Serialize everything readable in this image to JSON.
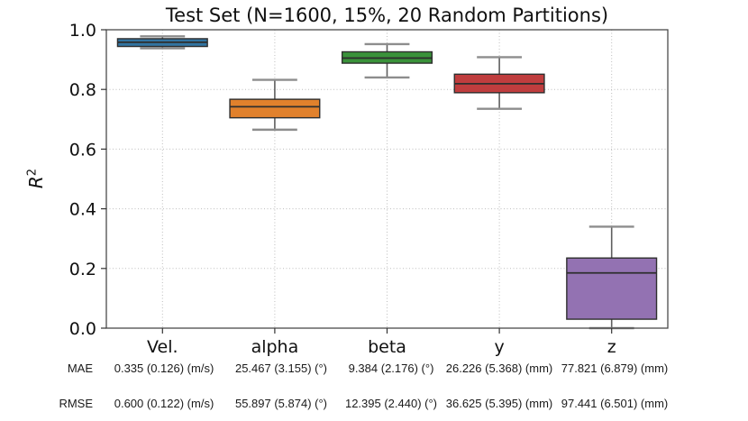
{
  "chart_data": {
    "type": "boxplot",
    "title": "Test Set (N=1600, 15%, 20 Random Partitions)",
    "ylabel": "R^2",
    "xlabel": "",
    "categories": [
      "Vel.",
      "alpha",
      "beta",
      "y",
      "z"
    ],
    "ylim": [
      0.0,
      1.0
    ],
    "yticks": [
      0.0,
      0.2,
      0.4,
      0.6,
      0.8,
      1.0
    ],
    "grid": "dotted gridlines on both axes, drawn below data",
    "legend": "none",
    "series": [
      {
        "name": "Vel.",
        "color": "#3274A1",
        "whisker_low": 0.938,
        "q1": 0.944,
        "median": 0.958,
        "q3": 0.97,
        "whisker_high": 0.978
      },
      {
        "name": "alpha",
        "color": "#E1812C",
        "whisker_low": 0.665,
        "q1": 0.705,
        "median": 0.742,
        "q3": 0.767,
        "whisker_high": 0.832
      },
      {
        "name": "beta",
        "color": "#3A923A",
        "whisker_low": 0.84,
        "q1": 0.888,
        "median": 0.905,
        "q3": 0.926,
        "whisker_high": 0.952
      },
      {
        "name": "y",
        "color": "#C03D3E",
        "whisker_low": 0.735,
        "q1": 0.789,
        "median": 0.819,
        "q3": 0.851,
        "whisker_high": 0.908
      },
      {
        "name": "z",
        "color": "#9372B2",
        "whisker_low": 0.0,
        "q1": 0.03,
        "median": 0.185,
        "q3": 0.235,
        "whisker_high": 0.34
      }
    ]
  },
  "axes": {
    "ylabel_base": "R",
    "ylabel_sup": "2"
  },
  "stats": {
    "rows": [
      {
        "label": "MAE",
        "values": [
          "0.335 (0.126) (m/s)",
          "25.467 (3.155) (°)",
          "9.384 (2.176) (°)",
          "26.226 (5.368) (mm)",
          "77.821 (6.879) (mm)"
        ]
      },
      {
        "label": "RMSE",
        "values": [
          "0.600 (0.122) (m/s)",
          "55.897 (5.874) (°)",
          "12.395 (2.440) (°)",
          "36.625 (5.395) (mm)",
          "97.441 (6.501) (mm)"
        ]
      }
    ]
  }
}
